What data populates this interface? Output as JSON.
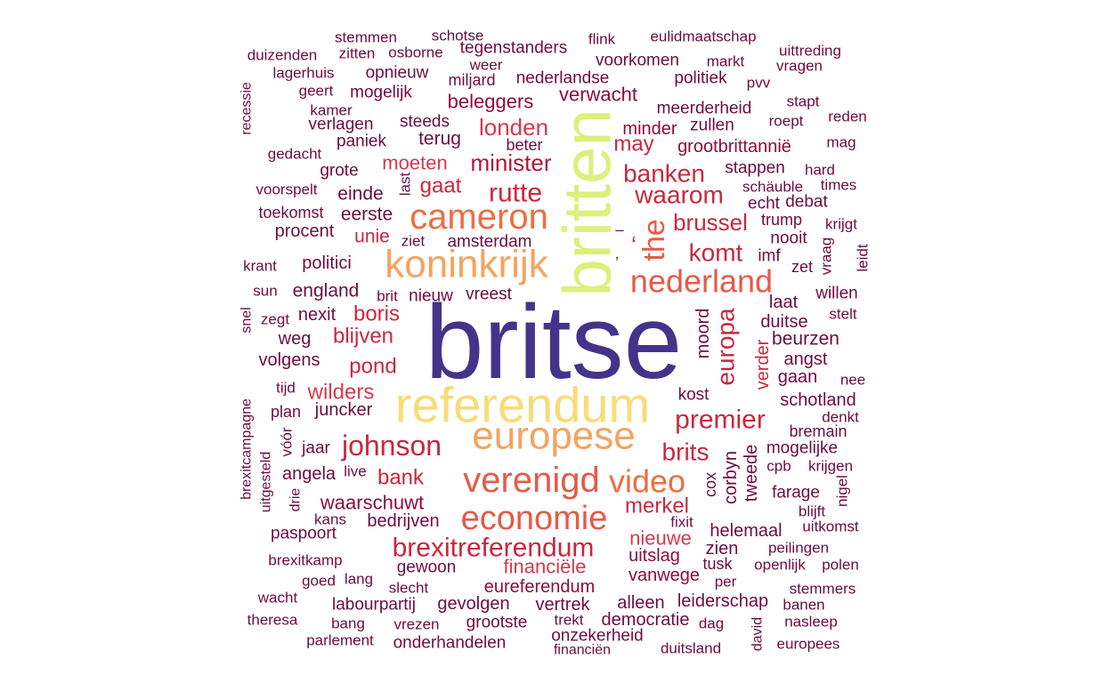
{
  "palette": {
    "c1": "#45338a",
    "c2": "#dcf07a",
    "c3": "#f8dc78",
    "c4": "#f4a460",
    "c5": "#ec6e40",
    "c6": "#e65a48",
    "c7": "#d43a4e",
    "c8": "#c8283e",
    "c9": "#b3163c",
    "c10": "#8f0b3e",
    "c11": "#6e0c40"
  },
  "words": [
    {
      "text": "britse",
      "color": "c1"
    },
    {
      "text": "britten",
      "color": "c2"
    },
    {
      "text": "referendum",
      "color": "c3"
    },
    {
      "text": "koninkrijk",
      "color": "c4"
    },
    {
      "text": "europese",
      "color": "c4"
    },
    {
      "text": "cameron",
      "color": "c5"
    },
    {
      "text": "verenigd",
      "color": "c6"
    },
    {
      "text": "economie",
      "color": "c6"
    },
    {
      "text": "nederland",
      "color": "c6"
    },
    {
      "text": "video",
      "color": "c5"
    },
    {
      "text": "the",
      "color": "c6"
    },
    {
      "text": "rutte",
      "color": "c8"
    },
    {
      "text": "johnson",
      "color": "c8"
    },
    {
      "text": "brexitreferendum",
      "color": "c8"
    },
    {
      "text": "premier",
      "color": "c8"
    },
    {
      "text": "banken",
      "color": "c8"
    },
    {
      "text": "waarom",
      "color": "c8"
    },
    {
      "text": "komt",
      "color": "c8"
    },
    {
      "text": "europa",
      "color": "c8"
    },
    {
      "text": "brussel",
      "color": "c8"
    },
    {
      "text": "brits",
      "color": "c8"
    },
    {
      "text": "londen",
      "color": "c7"
    },
    {
      "text": "minister",
      "color": "c9"
    },
    {
      "text": "moeten",
      "color": "c7"
    },
    {
      "text": "gaat",
      "color": "c8"
    },
    {
      "text": "may",
      "color": "c8"
    },
    {
      "text": "pond",
      "color": "c8"
    },
    {
      "text": "blijven",
      "color": "c8"
    },
    {
      "text": "boris",
      "color": "c8"
    },
    {
      "text": "wilders",
      "color": "c7"
    },
    {
      "text": "merkel",
      "color": "c8"
    },
    {
      "text": "nieuwe",
      "color": "c7"
    },
    {
      "text": "financiële",
      "color": "c7"
    },
    {
      "text": "beleggers",
      "color": "c10"
    },
    {
      "text": "verwacht",
      "color": "c10"
    },
    {
      "text": "bank",
      "color": "c8"
    },
    {
      "text": "waarschuwt",
      "color": "c10"
    },
    {
      "text": "eureferendum",
      "color": "c10"
    },
    {
      "text": "vanwege",
      "color": "c10"
    },
    {
      "text": "uitslag",
      "color": "c10"
    },
    {
      "text": "minder",
      "color": "c10"
    },
    {
      "text": "grootbrittannië",
      "color": "c10"
    },
    {
      "text": "stemmen",
      "color": "c11"
    },
    {
      "text": "schotse",
      "color": "c11"
    },
    {
      "text": "flink",
      "color": "c11"
    },
    {
      "text": "eulidmaatschap",
      "color": "c11"
    },
    {
      "text": "duizenden",
      "color": "c11"
    },
    {
      "text": "zitten",
      "color": "c11"
    },
    {
      "text": "osborne",
      "color": "c11"
    },
    {
      "text": "tegenstanders",
      "color": "c11"
    },
    {
      "text": "uittreding",
      "color": "c11"
    },
    {
      "text": "weer",
      "color": "c11"
    },
    {
      "text": "voorkomen",
      "color": "c11"
    },
    {
      "text": "markt",
      "color": "c11"
    },
    {
      "text": "vragen",
      "color": "c11"
    },
    {
      "text": "lagerhuis",
      "color": "c11"
    },
    {
      "text": "opnieuw",
      "color": "c11"
    },
    {
      "text": "miljard",
      "color": "c11"
    },
    {
      "text": "nederlandse",
      "color": "c11"
    },
    {
      "text": "politiek",
      "color": "c11"
    },
    {
      "text": "recessie",
      "color": "c11"
    },
    {
      "text": "geert",
      "color": "c11"
    },
    {
      "text": "mogelijk",
      "color": "c11"
    },
    {
      "text": "pvv",
      "color": "c11"
    },
    {
      "text": "stapt",
      "color": "c11"
    },
    {
      "text": "kamer",
      "color": "c11"
    },
    {
      "text": "meerderheid",
      "color": "c11"
    },
    {
      "text": "reden",
      "color": "c11"
    },
    {
      "text": "verlagen",
      "color": "c11"
    },
    {
      "text": "steeds",
      "color": "c11"
    },
    {
      "text": "zullen",
      "color": "c11"
    },
    {
      "text": "roept",
      "color": "c11"
    },
    {
      "text": "paniek",
      "color": "c11"
    },
    {
      "text": "terug",
      "color": "c11"
    },
    {
      "text": "beter",
      "color": "c11"
    },
    {
      "text": "mag",
      "color": "c11"
    },
    {
      "text": "gedacht",
      "color": "c11"
    },
    {
      "text": "grote",
      "color": "c11"
    },
    {
      "text": "stappen",
      "color": "c11"
    },
    {
      "text": "hard",
      "color": "c11"
    },
    {
      "text": "voorspelt",
      "color": "c11"
    },
    {
      "text": "last",
      "color": "c11"
    },
    {
      "text": "schäuble",
      "color": "c11"
    },
    {
      "text": "times",
      "color": "c11"
    },
    {
      "text": "einde",
      "color": "c11"
    },
    {
      "text": "echt",
      "color": "c11"
    },
    {
      "text": "debat",
      "color": "c11"
    },
    {
      "text": "toekomst",
      "color": "c11"
    },
    {
      "text": "eerste",
      "color": "c11"
    },
    {
      "text": "trump",
      "color": "c11"
    },
    {
      "text": "krijgt",
      "color": "c11"
    },
    {
      "text": "procent",
      "color": "c11"
    },
    {
      "text": "unie",
      "color": "c8"
    },
    {
      "text": "ziet",
      "color": "c11"
    },
    {
      "text": "amsterdam",
      "color": "c11"
    },
    {
      "text": "nooit",
      "color": "c11"
    },
    {
      "text": "vraag",
      "color": "c11"
    },
    {
      "text": "imf",
      "color": "c11"
    },
    {
      "text": "leidt",
      "color": "c11"
    },
    {
      "text": "krant",
      "color": "c11"
    },
    {
      "text": "politici",
      "color": "c11"
    },
    {
      "text": "zet",
      "color": "c11"
    },
    {
      "text": "sun",
      "color": "c11"
    },
    {
      "text": "england",
      "color": "c11"
    },
    {
      "text": "brit",
      "color": "c11"
    },
    {
      "text": "nieuw",
      "color": "c11"
    },
    {
      "text": "vreest",
      "color": "c11"
    },
    {
      "text": "willen",
      "color": "c11"
    },
    {
      "text": "snel",
      "color": "c11"
    },
    {
      "text": "laat",
      "color": "c11"
    },
    {
      "text": "zegt",
      "color": "c11"
    },
    {
      "text": "nexit",
      "color": "c11"
    },
    {
      "text": "moord",
      "color": "c11"
    },
    {
      "text": "stelt",
      "color": "c11"
    },
    {
      "text": "duitse",
      "color": "c11"
    },
    {
      "text": "weg",
      "color": "c11"
    },
    {
      "text": "beurzen",
      "color": "c11"
    },
    {
      "text": "verder",
      "color": "c8"
    },
    {
      "text": "volgens",
      "color": "c11"
    },
    {
      "text": "angst",
      "color": "c11"
    },
    {
      "text": "gaan",
      "color": "c11"
    },
    {
      "text": "nee",
      "color": "c11"
    },
    {
      "text": "tijd",
      "color": "c11"
    },
    {
      "text": "kost",
      "color": "c11"
    },
    {
      "text": "brexitcampagne",
      "color": "c11"
    },
    {
      "text": "schotland",
      "color": "c11"
    },
    {
      "text": "plan",
      "color": "c11"
    },
    {
      "text": "juncker",
      "color": "c11"
    },
    {
      "text": "denkt",
      "color": "c11"
    },
    {
      "text": "bremain",
      "color": "c11"
    },
    {
      "text": "vóór",
      "color": "c11"
    },
    {
      "text": "jaar",
      "color": "c11"
    },
    {
      "text": "mogelijke",
      "color": "c11"
    },
    {
      "text": "uitgesteld",
      "color": "c11"
    },
    {
      "text": "corbyn",
      "color": "c11"
    },
    {
      "text": "tweede",
      "color": "c11"
    },
    {
      "text": "cpb",
      "color": "c11"
    },
    {
      "text": "krijgen",
      "color": "c11"
    },
    {
      "text": "angela",
      "color": "c11"
    },
    {
      "text": "live",
      "color": "c11"
    },
    {
      "text": "cox",
      "color": "c11"
    },
    {
      "text": "drie",
      "color": "c11"
    },
    {
      "text": "farage",
      "color": "c11"
    },
    {
      "text": "nigel",
      "color": "c11"
    },
    {
      "text": "blijft",
      "color": "c11"
    },
    {
      "text": "kans",
      "color": "c11"
    },
    {
      "text": "bedrijven",
      "color": "c11"
    },
    {
      "text": "fixit",
      "color": "c11"
    },
    {
      "text": "uitkomst",
      "color": "c11"
    },
    {
      "text": "paspoort",
      "color": "c11"
    },
    {
      "text": "helemaal",
      "color": "c11"
    },
    {
      "text": "zien",
      "color": "c11"
    },
    {
      "text": "peilingen",
      "color": "c11"
    },
    {
      "text": "brexitkamp",
      "color": "c11"
    },
    {
      "text": "gewoon",
      "color": "c11"
    },
    {
      "text": "tusk",
      "color": "c11"
    },
    {
      "text": "openlijk",
      "color": "c11"
    },
    {
      "text": "polen",
      "color": "c11"
    },
    {
      "text": "goed",
      "color": "c11"
    },
    {
      "text": "lang",
      "color": "c11"
    },
    {
      "text": "slecht",
      "color": "c11"
    },
    {
      "text": "per",
      "color": "c11"
    },
    {
      "text": "stemmers",
      "color": "c11"
    },
    {
      "text": "wacht",
      "color": "c11"
    },
    {
      "text": "labourpartij",
      "color": "c11"
    },
    {
      "text": "gevolgen",
      "color": "c11"
    },
    {
      "text": "vertrek",
      "color": "c11"
    },
    {
      "text": "alleen",
      "color": "c11"
    },
    {
      "text": "leiderschap",
      "color": "c11"
    },
    {
      "text": "banen",
      "color": "c11"
    },
    {
      "text": "theresa",
      "color": "c11"
    },
    {
      "text": "bang",
      "color": "c11"
    },
    {
      "text": "grootste",
      "color": "c11"
    },
    {
      "text": "trekt",
      "color": "c11"
    },
    {
      "text": "democratie",
      "color": "c11"
    },
    {
      "text": "dag",
      "color": "c11"
    },
    {
      "text": "david",
      "color": "c11"
    },
    {
      "text": "nasleep",
      "color": "c11"
    },
    {
      "text": "vrezen",
      "color": "c11"
    },
    {
      "text": "onzekerheid",
      "color": "c11"
    },
    {
      "text": "parlement",
      "color": "c11"
    },
    {
      "text": "onderhandelen",
      "color": "c11"
    },
    {
      "text": "financiën",
      "color": "c11"
    },
    {
      "text": "duitsland",
      "color": "c11"
    },
    {
      "text": "europees",
      "color": "c11"
    },
    {
      "text": "–",
      "color": "c11"
    },
    {
      "text": ",",
      "color": "c11"
    },
    {
      "text": "‘",
      "color": "c8"
    }
  ]
}
